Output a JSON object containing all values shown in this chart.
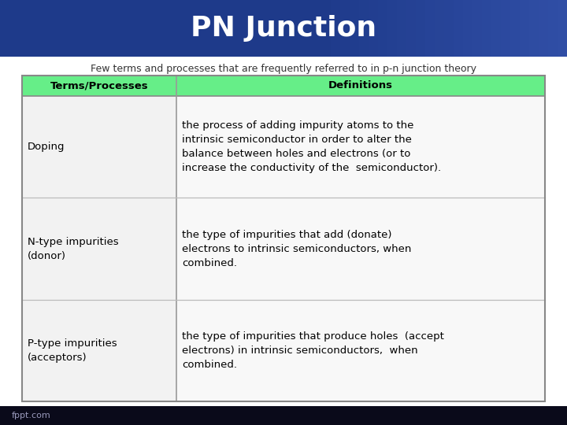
{
  "title": "PN Junction",
  "subtitle": "Few terms and processes that are frequently referred to in p-n junction theory",
  "header_bg": "#66EE88",
  "header_terms": "Terms/Processes",
  "header_defs": "Definitions",
  "title_bg_color": "#1e3a8a",
  "title_text_color": "#ffffff",
  "footer_bg": "#0a0a1a",
  "footer_text": "fppt.com",
  "col_split": 0.295,
  "rows": [
    {
      "term": "Doping",
      "definition": "the process of adding impurity atoms to the\nintrinsic semiconductor in order to alter the\nbalance between holes and electrons (or to\nincrease the conductivity of the  semiconductor)."
    },
    {
      "term": "N-type impurities\n(donor)",
      "definition": "the type of impurities that add (donate)\nelectrons to intrinsic semiconductors, when\ncombined."
    },
    {
      "term": "P-type impurities\n(acceptors)",
      "definition": "the type of impurities that produce holes  (accept\nelectrons) in intrinsic semiconductors,  when\ncombined."
    }
  ]
}
